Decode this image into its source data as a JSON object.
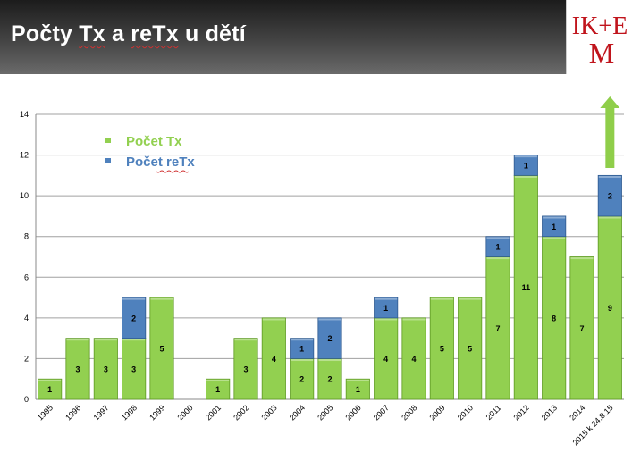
{
  "slide": {
    "title_parts": [
      "Počty ",
      "Tx",
      " a ",
      "reTx",
      " u dětí"
    ],
    "logo": {
      "text_top": "IK+E",
      "text_bottom": "M",
      "color": "#c0141c"
    }
  },
  "colors": {
    "tx": "#92d050",
    "tx_dark": "#5e9a22",
    "retx": "#4f81bd",
    "retx_dark": "#2e5a90",
    "arrow": "#8fce4a"
  },
  "chart_data": {
    "type": "bar",
    "stacked": true,
    "categories": [
      "1995",
      "1996",
      "1997",
      "1998",
      "1999",
      "2000",
      "2001",
      "2002",
      "2003",
      "2004",
      "2005",
      "2006",
      "2007",
      "2008",
      "2009",
      "2010",
      "2011",
      "2012",
      "2013",
      "2014",
      "2015 k 24.8.15"
    ],
    "series": [
      {
        "name": "Počet Tx",
        "values": [
          1,
          3,
          3,
          3,
          5,
          0,
          1,
          3,
          4,
          2,
          2,
          1,
          4,
          4,
          5,
          5,
          7,
          11,
          8,
          7,
          9
        ]
      },
      {
        "name": "Počet reTx",
        "values": [
          0,
          0,
          0,
          2,
          0,
          0,
          0,
          0,
          0,
          1,
          2,
          0,
          1,
          0,
          0,
          0,
          1,
          1,
          1,
          0,
          2
        ]
      }
    ],
    "ylim": [
      0,
      14
    ],
    "yticks": [
      0,
      2,
      4,
      6,
      8,
      10,
      12,
      14
    ],
    "grid": true,
    "legend_position": "top-left",
    "annotation": "up-arrow above last bar"
  }
}
